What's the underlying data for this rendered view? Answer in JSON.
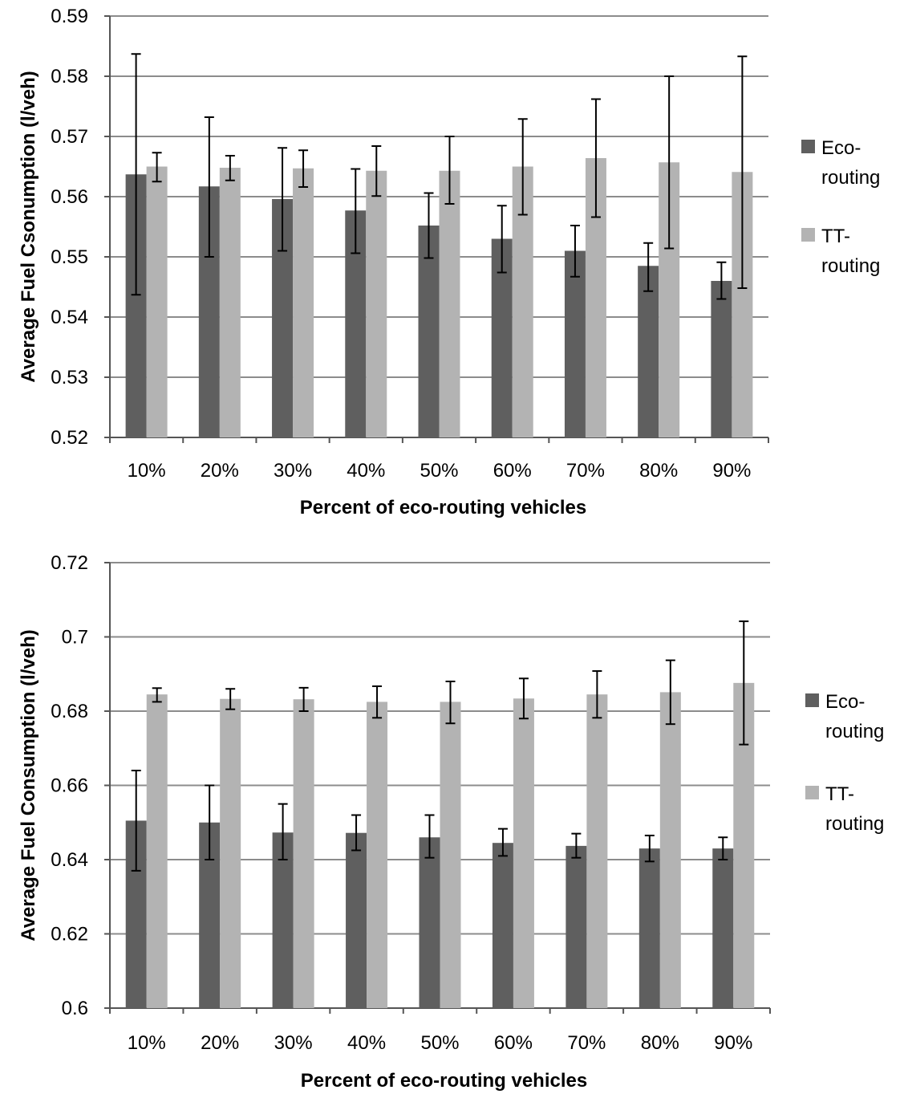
{
  "colors": {
    "eco": "#5f5f5f",
    "tt": "#b3b3b3",
    "grid": "#8c8c8c",
    "axis": "#555555",
    "error_bar": "#000000"
  },
  "chart_data": [
    {
      "type": "bar",
      "title": "",
      "xlabel": "Percent of eco-routing vehicles",
      "ylabel": "Average Fuel Csonumption (l/veh)",
      "ylim": [
        0.52,
        0.59
      ],
      "yticks": [
        "0.52",
        "0.53",
        "0.54",
        "0.55",
        "0.56",
        "0.57",
        "0.58",
        "0.59"
      ],
      "grid": true,
      "legend": "right",
      "categories": [
        "10%",
        "20%",
        "30%",
        "40%",
        "50%",
        "60%",
        "70%",
        "80%",
        "90%"
      ],
      "series": [
        {
          "name_lines": [
            "Eco-",
            "routing"
          ],
          "values": [
            0.5637,
            0.5617,
            0.5596,
            0.5577,
            0.5552,
            0.553,
            0.551,
            0.5485,
            0.546
          ],
          "error_low": [
            0.5437,
            0.55,
            0.551,
            0.5506,
            0.5498,
            0.5474,
            0.5467,
            0.5443,
            0.543
          ],
          "error_high": [
            0.5837,
            0.5732,
            0.5681,
            0.5646,
            0.5606,
            0.5585,
            0.5552,
            0.5523,
            0.5491
          ]
        },
        {
          "name_lines": [
            "TT-",
            "routing"
          ],
          "values": [
            0.565,
            0.5648,
            0.5647,
            0.5643,
            0.5643,
            0.565,
            0.5664,
            0.5657,
            0.5641
          ],
          "error_low": [
            0.5625,
            0.5627,
            0.5616,
            0.5601,
            0.5588,
            0.557,
            0.5566,
            0.5514,
            0.5448
          ],
          "error_high": [
            0.5673,
            0.5668,
            0.5677,
            0.5684,
            0.57,
            0.5729,
            0.5762,
            0.58,
            0.5833
          ]
        }
      ]
    },
    {
      "type": "bar",
      "title": "",
      "xlabel": "Percent of eco-routing vehicles",
      "ylabel": "Average Fuel Consumption (l/veh)",
      "ylim": [
        0.6,
        0.72
      ],
      "yticks": [
        "0.6",
        "0.62",
        "0.64",
        "0.66",
        "0.68",
        "0.7",
        "0.72"
      ],
      "grid": true,
      "legend": "right",
      "categories": [
        "10%",
        "20%",
        "30%",
        "40%",
        "50%",
        "60%",
        "70%",
        "80%",
        "90%"
      ],
      "series": [
        {
          "name_lines": [
            "Eco-",
            "routing"
          ],
          "values": [
            0.6505,
            0.65,
            0.6473,
            0.6472,
            0.646,
            0.6445,
            0.6437,
            0.643,
            0.643
          ],
          "error_low": [
            0.637,
            0.64,
            0.64,
            0.6425,
            0.6405,
            0.641,
            0.6405,
            0.6395,
            0.64
          ],
          "error_high": [
            0.664,
            0.66,
            0.655,
            0.652,
            0.652,
            0.6483,
            0.647,
            0.6465,
            0.646
          ]
        },
        {
          "name_lines": [
            "TT-",
            "routing"
          ],
          "values": [
            0.6845,
            0.6833,
            0.6832,
            0.6825,
            0.6825,
            0.6834,
            0.6845,
            0.6851,
            0.6876
          ],
          "error_low": [
            0.6825,
            0.6805,
            0.68,
            0.6782,
            0.6767,
            0.678,
            0.6782,
            0.6765,
            0.671
          ],
          "error_high": [
            0.6862,
            0.686,
            0.6863,
            0.6867,
            0.688,
            0.6888,
            0.6908,
            0.6937,
            0.7042
          ]
        }
      ]
    }
  ]
}
